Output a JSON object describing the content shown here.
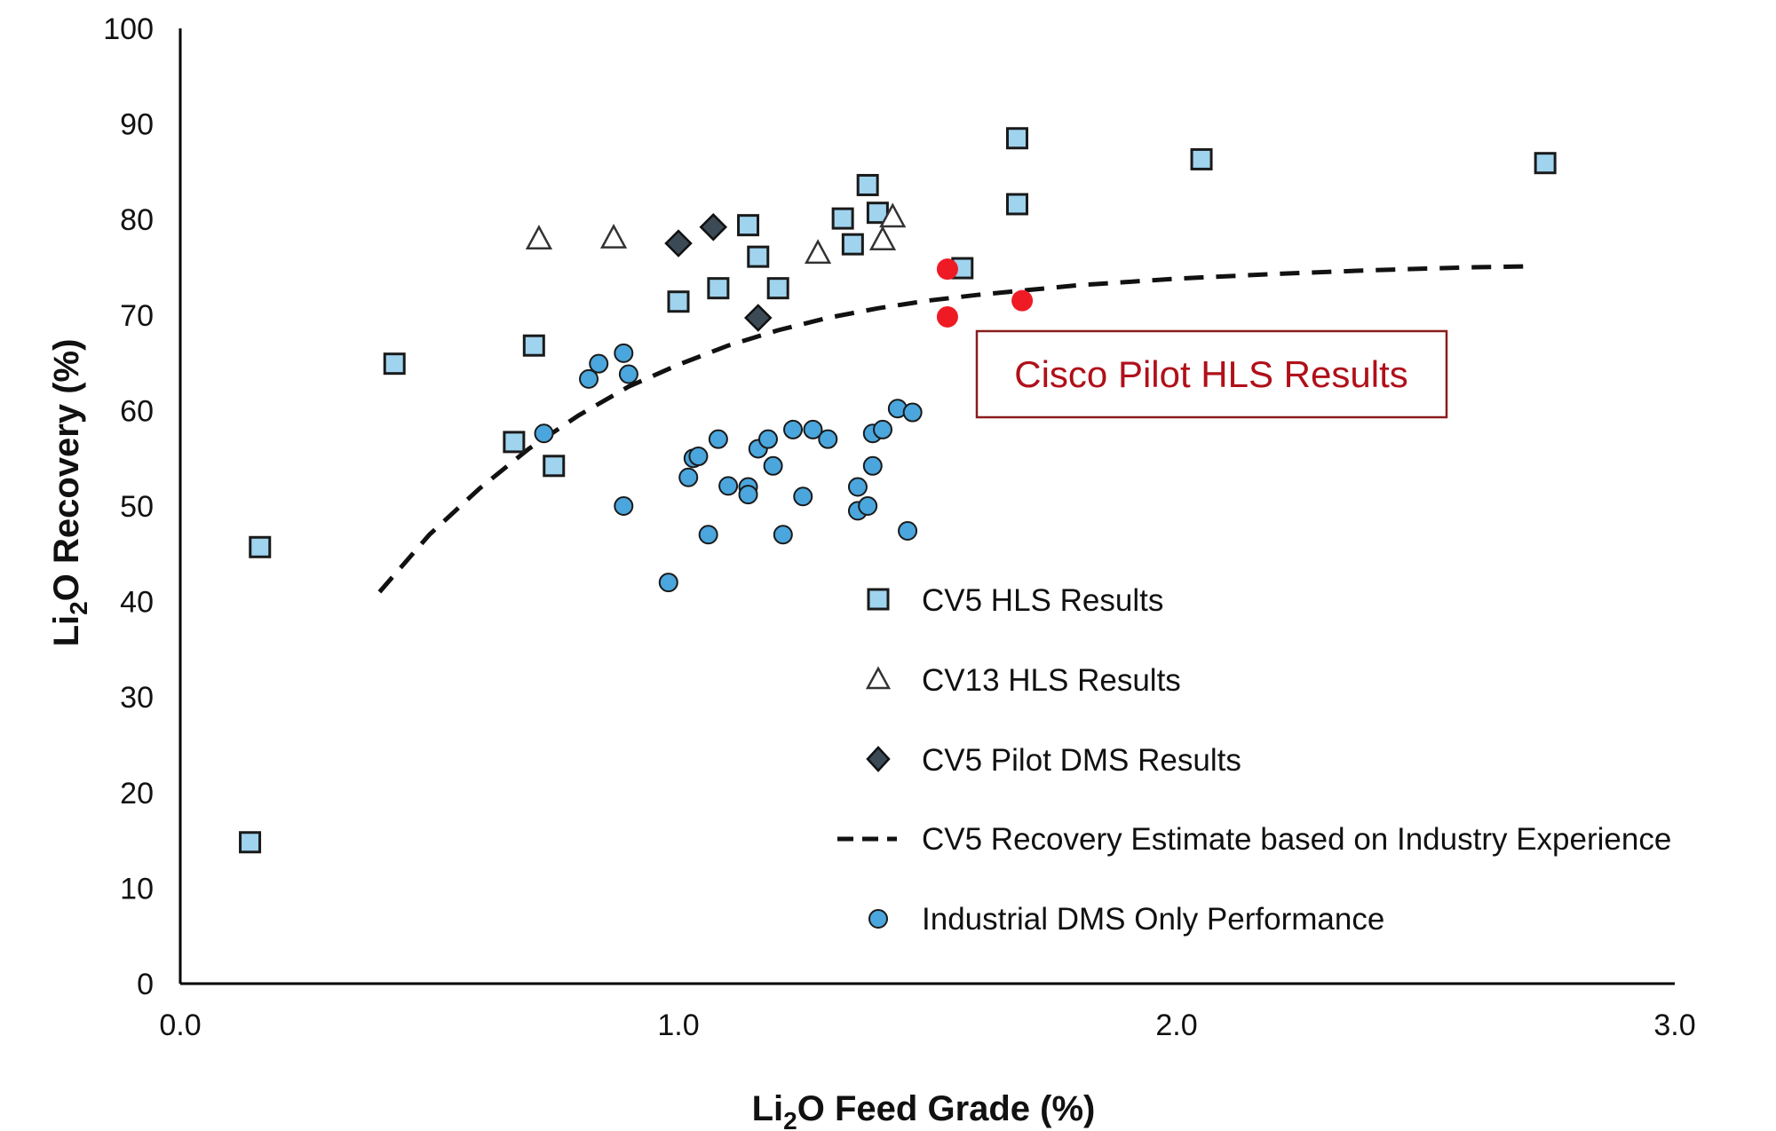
{
  "chart_data": {
    "type": "scatter",
    "title": "",
    "xlabel": {
      "prefix": "Li",
      "sub": "2",
      "suffix": "O Feed Grade (%)"
    },
    "ylabel": {
      "prefix": "Li",
      "sub": "2",
      "suffix": "O Recovery (%)"
    },
    "xlim": [
      0,
      3
    ],
    "ylim": [
      0,
      100
    ],
    "x_ticks": [
      0,
      1,
      2,
      3
    ],
    "x_tick_labels": [
      "0.0",
      "1.0",
      "2.0",
      "3.0"
    ],
    "y_ticks": [
      0,
      10,
      20,
      30,
      40,
      50,
      60,
      70,
      80,
      90,
      100
    ],
    "y_tick_labels": [
      "0",
      "10",
      "20",
      "30",
      "40",
      "50",
      "60",
      "70",
      "80",
      "90",
      "100"
    ],
    "grid": false,
    "legend_position": "bottom-right inside plot",
    "legend": [
      {
        "label": "CV5 HLS Results",
        "marker": "square"
      },
      {
        "label": "CV13 HLS Results",
        "marker": "triangle"
      },
      {
        "label": "CV5 Pilot DMS Results",
        "marker": "diamond"
      },
      {
        "label": "CV5 Recovery Estimate based on Industry Experience",
        "marker": "dashed-line"
      },
      {
        "label": "Industrial DMS Only Performance",
        "marker": "circle"
      }
    ],
    "annotation": {
      "text": "Cisco Pilot HLS Results",
      "color": "#b0101a"
    },
    "series": [
      {
        "name": "CV5 HLS Results",
        "marker": "square",
        "points": [
          [
            0.14,
            14.8
          ],
          [
            0.16,
            45.7
          ],
          [
            0.43,
            64.9
          ],
          [
            0.67,
            56.7
          ],
          [
            0.71,
            66.8
          ],
          [
            0.75,
            54.2
          ],
          [
            1.0,
            71.4
          ],
          [
            1.08,
            72.8
          ],
          [
            1.14,
            79.4
          ],
          [
            1.16,
            76.1
          ],
          [
            1.2,
            72.8
          ],
          [
            1.33,
            80.1
          ],
          [
            1.35,
            77.4
          ],
          [
            1.38,
            83.6
          ],
          [
            1.4,
            80.7
          ],
          [
            1.57,
            74.9
          ],
          [
            1.68,
            88.5
          ],
          [
            1.68,
            81.6
          ],
          [
            2.05,
            86.3
          ],
          [
            2.74,
            85.9
          ]
        ]
      },
      {
        "name": "CV13 HLS Results",
        "marker": "triangle",
        "points": [
          [
            0.72,
            78.0
          ],
          [
            0.87,
            78.1
          ],
          [
            1.28,
            76.5
          ],
          [
            1.41,
            77.9
          ],
          [
            1.43,
            80.3
          ]
        ]
      },
      {
        "name": "CV5 Pilot DMS Results",
        "marker": "diamond",
        "points": [
          [
            1.0,
            77.5
          ],
          [
            1.07,
            79.2
          ],
          [
            1.16,
            69.7
          ]
        ]
      },
      {
        "name": "Industrial DMS Only Performance",
        "marker": "circle",
        "points": [
          [
            0.73,
            57.6
          ],
          [
            0.82,
            63.3
          ],
          [
            0.84,
            64.9
          ],
          [
            0.89,
            66.0
          ],
          [
            0.9,
            63.8
          ],
          [
            0.89,
            50.0
          ],
          [
            0.98,
            42.0
          ],
          [
            1.02,
            53.0
          ],
          [
            1.03,
            55.0
          ],
          [
            1.04,
            55.2
          ],
          [
            1.06,
            47.0
          ],
          [
            1.08,
            57.0
          ],
          [
            1.1,
            52.1
          ],
          [
            1.14,
            52.0
          ],
          [
            1.14,
            51.2
          ],
          [
            1.16,
            56.0
          ],
          [
            1.18,
            57.0
          ],
          [
            1.19,
            54.2
          ],
          [
            1.21,
            47.0
          ],
          [
            1.23,
            58.0
          ],
          [
            1.25,
            51.0
          ],
          [
            1.27,
            58.0
          ],
          [
            1.3,
            57.0
          ],
          [
            1.36,
            52.0
          ],
          [
            1.36,
            49.5
          ],
          [
            1.38,
            50.0
          ],
          [
            1.39,
            54.2
          ],
          [
            1.39,
            57.6
          ],
          [
            1.41,
            58.0
          ],
          [
            1.44,
            60.2
          ],
          [
            1.46,
            47.4
          ],
          [
            1.47,
            59.8
          ]
        ]
      },
      {
        "name": "Cisco Pilot HLS Results",
        "marker": "red-circle",
        "points": [
          [
            1.54,
            74.8
          ],
          [
            1.54,
            69.8
          ],
          [
            1.69,
            71.5
          ]
        ]
      },
      {
        "name": "CV5 Recovery Estimate based on Industry Experience",
        "marker": "dashed-line",
        "points": [
          [
            0.4,
            41.0
          ],
          [
            0.5,
            47.0
          ],
          [
            0.6,
            51.8
          ],
          [
            0.7,
            56.0
          ],
          [
            0.8,
            59.5
          ],
          [
            0.9,
            62.5
          ],
          [
            1.0,
            64.8
          ],
          [
            1.1,
            66.8
          ],
          [
            1.2,
            68.4
          ],
          [
            1.3,
            69.7
          ],
          [
            1.4,
            70.7
          ],
          [
            1.5,
            71.5
          ],
          [
            1.6,
            72.1
          ],
          [
            1.7,
            72.6
          ],
          [
            1.8,
            73.1
          ],
          [
            2.0,
            73.8
          ],
          [
            2.2,
            74.3
          ],
          [
            2.4,
            74.7
          ],
          [
            2.6,
            75.0
          ],
          [
            2.72,
            75.1
          ]
        ]
      }
    ]
  }
}
